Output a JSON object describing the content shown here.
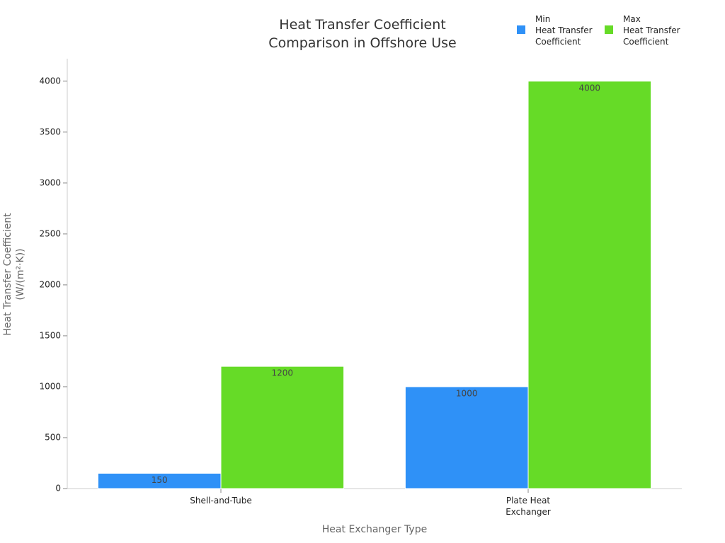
{
  "chart_data": {
    "type": "bar",
    "title": "Heat Transfer Coefficient\nComparison in Offshore Use",
    "x_label": "Heat Exchanger Type",
    "y_label": "Heat Transfer Coefficient\n(W/(m²·K))",
    "categories": [
      "Shell-and-Tube",
      "Plate Heat\nExchanger"
    ],
    "series": [
      {
        "name": "Min\nHeat Transfer\nCoefficient",
        "color": "#2f91f7",
        "values": [
          150,
          1000
        ]
      },
      {
        "name": "Max\nHeat Transfer\nCoefficient",
        "color": "#66db27",
        "values": [
          1200,
          4000
        ]
      }
    ],
    "ylim": [
      0,
      4200
    ],
    "yticks": [
      0,
      500,
      1000,
      1500,
      2000,
      2500,
      3000,
      3500,
      4000
    ],
    "legend": "top-right"
  }
}
